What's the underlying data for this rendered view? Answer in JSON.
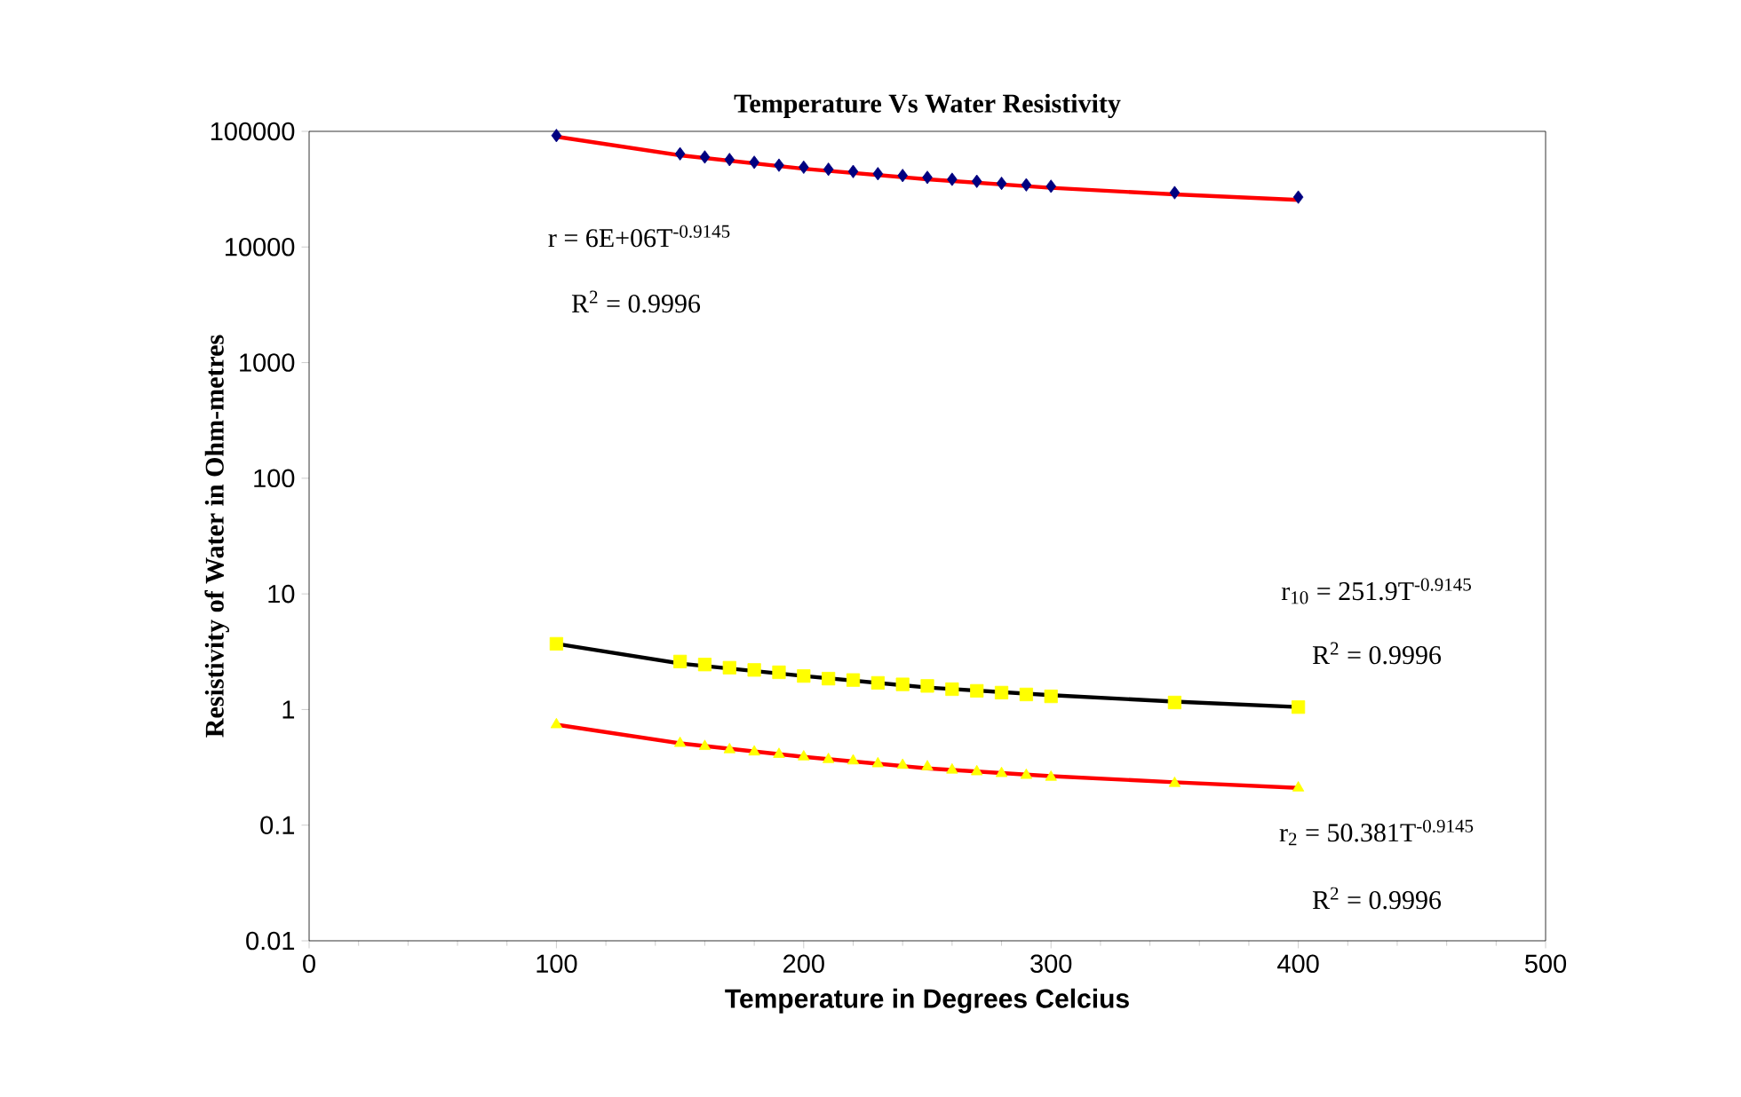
{
  "chart_data": {
    "type": "scatter",
    "title": "Temperature Vs Water Resistivity",
    "xlabel": "Temperature in Degrees Celcius",
    "ylabel": "Resistivity of Water in Ohm-metres",
    "log": "y",
    "xlim": [
      0,
      500
    ],
    "xticks": [
      0,
      100,
      200,
      300,
      400,
      500
    ],
    "ylim": [
      0.01,
      100000
    ],
    "yticks": [
      0.01,
      0.1,
      1,
      10,
      100,
      1000,
      10000,
      100000
    ],
    "x": [
      100,
      150,
      160,
      170,
      180,
      190,
      200,
      210,
      220,
      230,
      240,
      250,
      260,
      270,
      280,
      290,
      300,
      350,
      400
    ],
    "series": [
      {
        "marker": "diamond",
        "color": "#000080",
        "values": [
          92000,
          64000,
          60000,
          57000,
          54000,
          51000,
          49000,
          47000,
          45000,
          43000,
          41500,
          40000,
          38500,
          37000,
          35500,
          34500,
          33500,
          29500,
          27000
        ]
      },
      {
        "marker": "square",
        "color": "#ffff00",
        "values": [
          3.7,
          2.6,
          2.45,
          2.3,
          2.2,
          2.1,
          1.95,
          1.85,
          1.8,
          1.7,
          1.65,
          1.6,
          1.5,
          1.45,
          1.4,
          1.35,
          1.3,
          1.15,
          1.05
        ]
      },
      {
        "marker": "triangle",
        "color": "#ffff00",
        "values": [
          0.74,
          0.51,
          0.48,
          0.45,
          0.43,
          0.41,
          0.39,
          0.37,
          0.36,
          0.34,
          0.33,
          0.32,
          0.3,
          0.29,
          0.28,
          0.27,
          0.26,
          0.23,
          0.21
        ]
      },
      {
        "type": "line",
        "color": "#ff0000",
        "x": [
          100,
          150,
          200,
          250,
          300,
          350,
          400
        ],
        "values": [
          90000,
          62000,
          47500,
          38500,
          32500,
          28500,
          25500
        ]
      },
      {
        "type": "line",
        "color": "#000000",
        "x": [
          100,
          150,
          200,
          250,
          300,
          350,
          400
        ],
        "values": [
          3.7,
          2.5,
          1.95,
          1.55,
          1.33,
          1.17,
          1.05
        ]
      },
      {
        "type": "line",
        "color": "#ff0000",
        "x": [
          100,
          150,
          200,
          250,
          300,
          350,
          400
        ],
        "values": [
          0.74,
          0.51,
          0.39,
          0.31,
          0.265,
          0.235,
          0.21
        ]
      }
    ],
    "annotations": [
      "r = 6E+06T$^{-0.9145}$",
      "R$^{2}$ = 0.9996",
      "r$_{10}$ = 251.9T$^{-0.9145}$",
      "R$^{2}$ = 0.9996",
      "r$_{2}$ = 50.381T$^{-0.9145}$",
      "R$^{2}$ = 0.9996"
    ]
  }
}
